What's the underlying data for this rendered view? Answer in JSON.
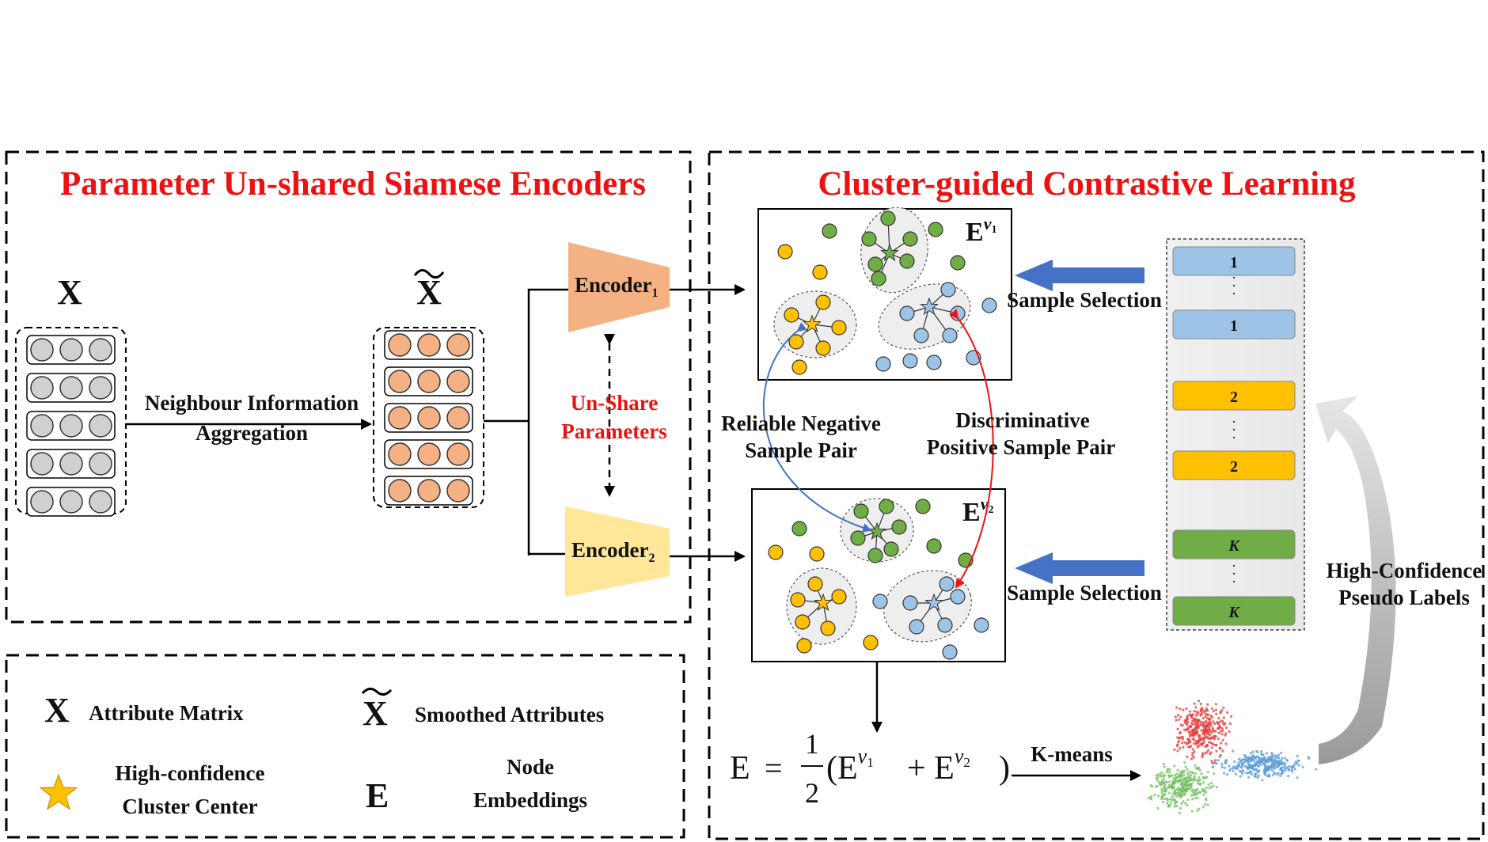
{
  "left_panel": {
    "title": "Parameter Un-shared Siamese Encoders",
    "x_label": "X",
    "x_tilde_label": "X",
    "aggregation_line1": "Neighbour Information",
    "aggregation_line2": "Aggregation",
    "encoder1": "Encoder",
    "encoder1_sub": "1",
    "encoder2": "Encoder",
    "encoder2_sub": "2",
    "unshare_line1": "Un-Share",
    "unshare_line2": "Parameters"
  },
  "right_panel": {
    "title": "Cluster-guided Contrastive Learning",
    "emb1_label": "E",
    "emb1_sup": "v",
    "emb1_supsub": "1",
    "emb2_label": "E",
    "emb2_sup": "v",
    "emb2_supsub": "2",
    "neg_line1": "Reliable Negative",
    "neg_line2": "Sample Pair",
    "pos_line1": "Discriminative",
    "pos_line2": "Positive  Sample Pair",
    "sample_selection_1": "Sample Selection",
    "sample_selection_2": "Sample Selection",
    "pseudo_line1": "High-Confidence",
    "pseudo_line2": "Pseudo Labels",
    "labels": [
      "1",
      "1",
      "2",
      "2",
      "K",
      "K"
    ],
    "dots": ".",
    "formula_lhs": "E",
    "formula_eq": "=",
    "formula_num": "1",
    "formula_den": "2",
    "formula_open": "(E",
    "formula_plus": "+ E",
    "formula_close": ")",
    "kmeans": "K-means"
  },
  "legend": {
    "x_symbol": "X",
    "x_text": "Attribute Matrix",
    "xt_symbol": "X",
    "xt_text": "Smoothed  Attributes",
    "star_line1": "High-confidence",
    "star_line2": "Cluster Center",
    "e_symbol": "E",
    "e_line1": "Node",
    "e_line2": "Embeddings"
  },
  "colors": {
    "title_red": "#ee1111",
    "encoder1_fill": "#f4b183",
    "encoder2_fill": "#ffe699",
    "orange_node": "#f4b183",
    "gray_node": "#d0d0d0",
    "yellow": "#ffc000",
    "green": "#70ad47",
    "blue": "#9dc3e6",
    "label_blue": "#9dc3e6",
    "label_yellow": "#ffc000",
    "label_green": "#70ad47",
    "arrow_blue": "#4472c4",
    "star_gold": "#ffc000"
  }
}
